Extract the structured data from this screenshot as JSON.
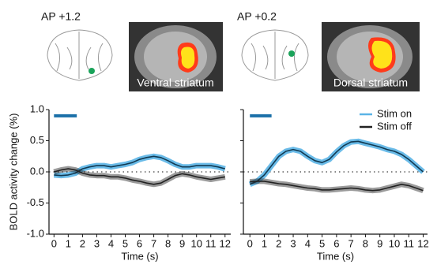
{
  "panels": [
    {
      "ap_label": "AP +1.2",
      "region": "Ventral striatum"
    },
    {
      "ap_label": "AP +0.2",
      "region": "Dorsal striatum"
    }
  ],
  "chart_data": [
    {
      "type": "line",
      "x_label": "Time (s)",
      "y_label": "BOLD activity change (%)",
      "x": [
        0,
        0.5,
        1,
        1.5,
        2,
        2.5,
        3,
        3.5,
        4,
        4.5,
        5,
        5.5,
        6,
        6.5,
        7,
        7.5,
        8,
        8.5,
        9,
        9.5,
        10,
        10.5,
        11,
        11.5,
        12
      ],
      "series": [
        {
          "name": "Stim on",
          "color": "#5ab4e6",
          "values": [
            -0.05,
            -0.06,
            -0.05,
            -0.02,
            0.05,
            0.08,
            0.1,
            0.1,
            0.08,
            0.1,
            0.12,
            0.15,
            0.2,
            0.23,
            0.25,
            0.23,
            0.18,
            0.12,
            0.08,
            0.08,
            0.1,
            0.1,
            0.1,
            0.08,
            0.05
          ]
        },
        {
          "name": "Stim off",
          "color": "#222222",
          "values": [
            0.0,
            0.03,
            0.05,
            0.03,
            -0.02,
            -0.05,
            -0.06,
            -0.06,
            -0.08,
            -0.08,
            -0.1,
            -0.13,
            -0.15,
            -0.18,
            -0.2,
            -0.18,
            -0.12,
            -0.06,
            -0.03,
            -0.05,
            -0.08,
            -0.1,
            -0.12,
            -0.1,
            -0.08
          ]
        }
      ],
      "xlim": [
        -0.35,
        12.4
      ],
      "ylim": [
        -1.0,
        1.0
      ],
      "xticks": [
        0,
        1,
        2,
        3,
        4,
        5,
        6,
        7,
        8,
        9,
        10,
        11,
        12
      ],
      "yticks": [
        {
          "value": -1.0,
          "label": "-1.0"
        },
        {
          "value": -0.5,
          "label": "-0.5"
        },
        {
          "value": 0.0,
          "label": "0.0"
        },
        {
          "value": 0.5,
          "label": "0.5"
        },
        {
          "value": 1.0,
          "label": "1.0"
        }
      ],
      "ytick_labels": true,
      "zero_line": true,
      "legend": false,
      "stimulus": {
        "start": 0,
        "end": 1.6,
        "level": 0.9,
        "color": "#1a6fa8"
      }
    },
    {
      "type": "line",
      "x_label": "Time (s)",
      "x": [
        0,
        0.5,
        1,
        1.5,
        2,
        2.5,
        3,
        3.5,
        4,
        4.5,
        5,
        5.5,
        6,
        6.5,
        7,
        7.5,
        8,
        8.5,
        9,
        9.5,
        10,
        10.5,
        11,
        11.5,
        12
      ],
      "series": [
        {
          "name": "Stim on",
          "color": "#5ab4e6",
          "values": [
            -0.2,
            -0.15,
            -0.05,
            0.1,
            0.25,
            0.33,
            0.36,
            0.33,
            0.25,
            0.18,
            0.15,
            0.2,
            0.32,
            0.42,
            0.48,
            0.49,
            0.46,
            0.43,
            0.4,
            0.36,
            0.33,
            0.28,
            0.2,
            0.1,
            0.0
          ]
        },
        {
          "name": "Stim off",
          "color": "#222222",
          "values": [
            -0.16,
            -0.15,
            -0.15,
            -0.17,
            -0.19,
            -0.2,
            -0.22,
            -0.24,
            -0.26,
            -0.27,
            -0.29,
            -0.29,
            -0.28,
            -0.27,
            -0.26,
            -0.27,
            -0.29,
            -0.3,
            -0.29,
            -0.26,
            -0.23,
            -0.2,
            -0.22,
            -0.26,
            -0.3
          ]
        }
      ],
      "xlim": [
        -0.45,
        12.3
      ],
      "ylim": [
        -1.0,
        1.0
      ],
      "xticks": [
        0,
        1,
        2,
        3,
        4,
        5,
        6,
        7,
        8,
        9,
        10,
        11,
        12
      ],
      "yticks": [
        -1,
        -0.5,
        0,
        0.5,
        1
      ],
      "ytick_labels": false,
      "zero_line": true,
      "legend": "upper right",
      "stimulus": {
        "start": 0,
        "end": 1.5,
        "level": 0.9,
        "color": "#1a6fa8"
      }
    }
  ]
}
